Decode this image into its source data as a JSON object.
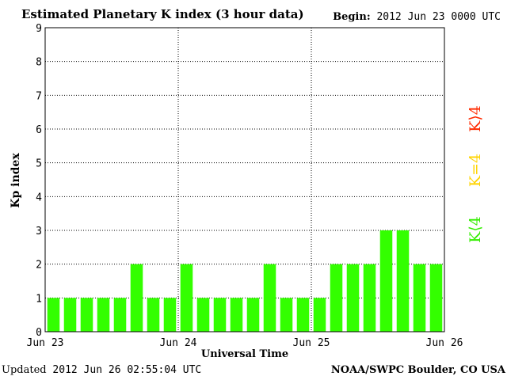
{
  "header": {
    "title": "Estimated Planetary K index (3 hour data)",
    "begin_label": "Begin:",
    "begin_value": "2012 Jun 23 0000 UTC"
  },
  "footer": {
    "updated_label": "Updated",
    "updated_value": "2012 Jun 26 02:55:04 UTC",
    "source": "NOAA/SWPC Boulder, CO USA"
  },
  "legend": {
    "high": "K⟩4",
    "mid": "K=4",
    "low": "K⟨4",
    "colors": {
      "high": "#ff2a00",
      "mid": "#ffd400",
      "low": "#33ee00"
    }
  },
  "chart_data": {
    "type": "bar",
    "title": "Estimated Planetary K index (3 hour data)",
    "xlabel": "Universal Time",
    "ylabel": "Kp index",
    "ylim": [
      0,
      9
    ],
    "yticks": [
      "0",
      "1",
      "2",
      "3",
      "4",
      "5",
      "6",
      "7",
      "8",
      "9"
    ],
    "xticks": [
      "Jun 23",
      "Jun 24",
      "Jun 25",
      "Jun 26"
    ],
    "grid": true,
    "bar_color": "#33ff00",
    "series": [
      {
        "values": [
          1,
          1,
          1,
          1,
          1,
          2,
          1,
          1,
          2,
          1,
          1,
          1,
          1,
          2,
          1,
          1,
          1,
          2,
          2,
          2,
          3,
          3,
          2,
          2
        ]
      }
    ]
  }
}
